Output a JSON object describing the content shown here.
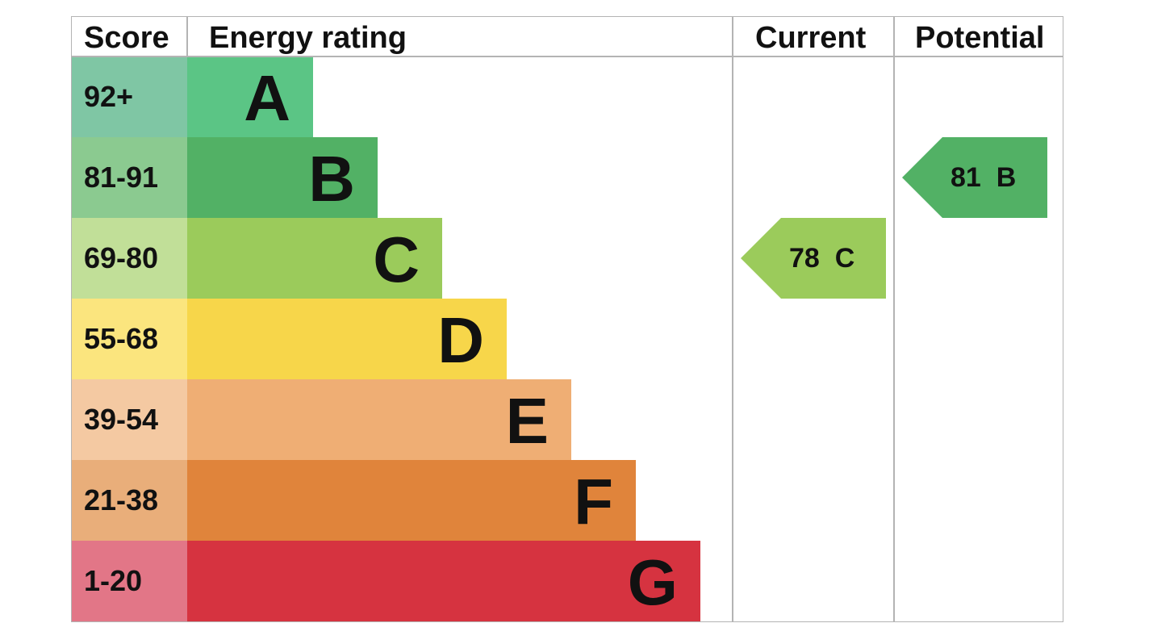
{
  "chart_data": {
    "type": "bar",
    "headers": {
      "score": "Score",
      "energy_rating": "Energy rating",
      "current": "Current",
      "potential": "Potential"
    },
    "bands": [
      {
        "letter": "A",
        "range": "92+",
        "color": "#5bc585",
        "score_color": "#7fc6a4"
      },
      {
        "letter": "B",
        "range": "81-91",
        "color": "#52b165",
        "score_color": "#8bca90"
      },
      {
        "letter": "C",
        "range": "69-80",
        "color": "#9bcb5b",
        "score_color": "#c1df98"
      },
      {
        "letter": "D",
        "range": "55-68",
        "color": "#f7d64a",
        "score_color": "#fbe57e"
      },
      {
        "letter": "E",
        "range": "39-54",
        "color": "#efae74",
        "score_color": "#f4c9a2"
      },
      {
        "letter": "F",
        "range": "21-38",
        "color": "#e0843b",
        "score_color": "#e9ae7a"
      },
      {
        "letter": "G",
        "range": "1-20",
        "color": "#d63340",
        "score_color": "#e27687"
      }
    ],
    "current": {
      "value": 78,
      "band": "C",
      "label": "78  C",
      "color": "#9bcb5b"
    },
    "potential": {
      "value": 81,
      "band": "B",
      "label": "81  B",
      "color": "#52b165"
    }
  }
}
